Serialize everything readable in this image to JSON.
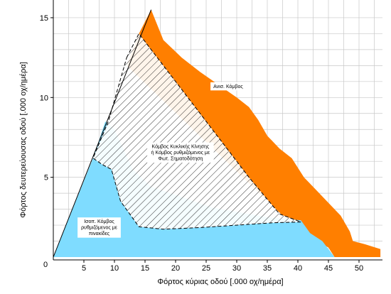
{
  "chart_data": {
    "type": "area",
    "xlabel": "Φόρτος κύριας οδού [.000 οχ/ημέρα]",
    "ylabel": "Φόρτος δευτερεύουσας οδού [.000 οχ/ημέρα]",
    "xlim": [
      0,
      54
    ],
    "ylim": [
      0,
      15.5
    ],
    "xticks": [
      "5",
      "10",
      "15",
      "20",
      "25",
      "30",
      "35",
      "40",
      "45",
      "50"
    ],
    "yticks": [
      "5",
      "10",
      "15"
    ],
    "origin_label": "0",
    "grid": true,
    "regions": [
      {
        "name": "orange",
        "label": "Ανισ. Κόμβος",
        "label_at": [
          28.6,
          10.7
        ],
        "color": "#ff7f00",
        "polygon": [
          [
            16,
            15.5
          ],
          [
            18,
            13.6
          ],
          [
            21,
            12.5
          ],
          [
            24,
            11.6
          ],
          [
            27,
            10.8
          ],
          [
            30,
            10.0
          ],
          [
            32,
            9.4
          ],
          [
            33.5,
            8.6
          ],
          [
            35,
            7.6
          ],
          [
            37,
            6.8
          ],
          [
            39,
            6.2
          ],
          [
            41,
            5.0
          ],
          [
            43,
            4.2
          ],
          [
            45,
            3.4
          ],
          [
            47,
            2.6
          ],
          [
            48.5,
            1.6
          ],
          [
            49,
            1.0
          ],
          [
            51,
            0.8
          ],
          [
            53.5,
            0.5
          ],
          [
            53.5,
            0
          ],
          [
            46,
            0
          ],
          [
            45,
            0.6
          ],
          [
            43,
            1.0
          ],
          [
            40.5,
            1.5
          ],
          [
            12,
            12
          ],
          [
            14,
            14
          ]
        ]
      },
      {
        "name": "blue",
        "label": "Ισοπ. Κόμβος ρυθμιζόμενος με πινακίδες",
        "label_at": [
          7.5,
          1.85
        ],
        "color": "#7fdcff",
        "polygon": [
          [
            0,
            0
          ],
          [
            6.5,
            6.2
          ],
          [
            8.5,
            8.5
          ],
          [
            10,
            8
          ],
          [
            13,
            5.5
          ],
          [
            16,
            4.4
          ],
          [
            20,
            3.9
          ],
          [
            23,
            3.5
          ],
          [
            26,
            3.1
          ],
          [
            29,
            2.9
          ],
          [
            32,
            2.7
          ],
          [
            35,
            2.5
          ],
          [
            38,
            2.4
          ],
          [
            40.5,
            2.3
          ],
          [
            42,
            1.5
          ],
          [
            44,
            1
          ],
          [
            45,
            0.5
          ],
          [
            46,
            0
          ]
        ]
      },
      {
        "name": "hatched",
        "label": "Κόμβος Κυκλικής Κίνησης ή Κόμβος ρυθμιζόμενος με Φωτ. Σηματοδότηση",
        "label_at": [
          20.8,
          6.55
        ],
        "color": "#000000",
        "polygon": [
          [
            12,
            12.5
          ],
          [
            14,
            14
          ],
          [
            20,
            11
          ],
          [
            26,
            8
          ],
          [
            32,
            5
          ],
          [
            37,
            2.7
          ],
          [
            40.5,
            2.2
          ],
          [
            36,
            2.15
          ],
          [
            32,
            2.05
          ],
          [
            28,
            1.95
          ],
          [
            24,
            1.85
          ],
          [
            21,
            1.8
          ],
          [
            18,
            1.75
          ],
          [
            14,
            1.9
          ],
          [
            11,
            3.5
          ],
          [
            9.5,
            5.5
          ],
          [
            8,
            5.8
          ],
          [
            6.5,
            6.2
          ],
          [
            9,
            8.5
          ]
        ]
      }
    ]
  }
}
